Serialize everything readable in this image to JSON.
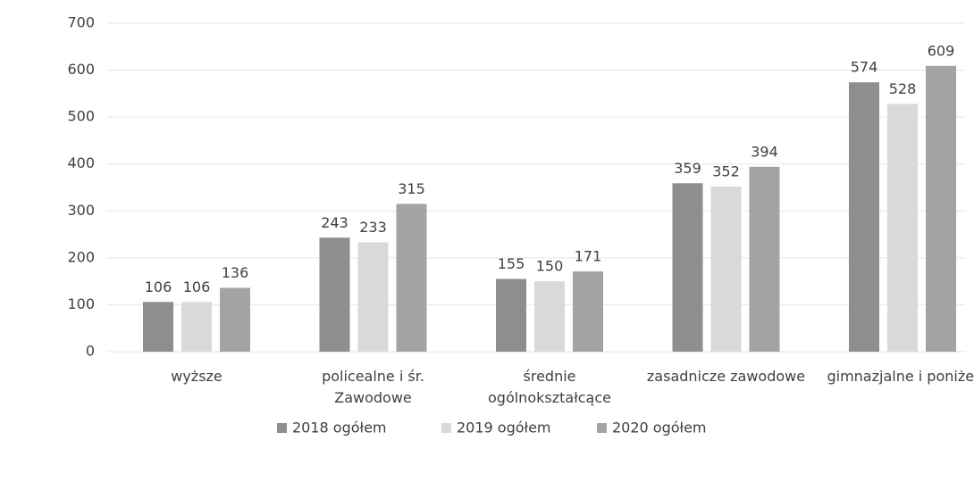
{
  "chart_data": {
    "type": "bar",
    "categories": [
      "wyższe",
      "policealne i śr. Zawodowe",
      "średnie ogólnokształcące",
      "zasadnicze zawodowe",
      "gimnazjalne i poniżej"
    ],
    "series": [
      {
        "name": "2018 ogółem",
        "color": "#8e8e8e",
        "values": [
          106,
          243,
          155,
          359,
          574
        ]
      },
      {
        "name": "2019 ogółem",
        "color": "#d9d9d9",
        "values": [
          106,
          233,
          150,
          352,
          528
        ]
      },
      {
        "name": "2020 ogółem",
        "color": "#a3a3a3",
        "values": [
          136,
          315,
          171,
          394,
          609
        ]
      }
    ],
    "ylim": [
      0,
      700
    ],
    "yticks": [
      0,
      100,
      200,
      300,
      400,
      500,
      600,
      700
    ],
    "grid": true,
    "legend": "bottom"
  }
}
